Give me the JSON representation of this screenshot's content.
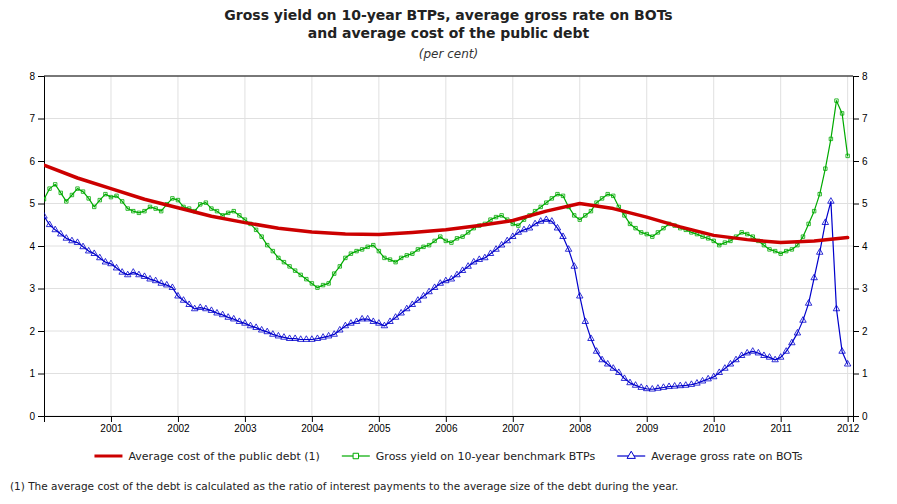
{
  "chart_data": {
    "type": "line",
    "title": [
      "Gross yield on 10-year BTPs, average gross rate on BOTs",
      "and average cost of the public debt"
    ],
    "subtitle": "(per cent)",
    "annotations": [
      "(1) The average cost of the debt is calculated as the ratio of interest payments to the average size of the debt during the year."
    ],
    "xlim": [
      2000.0,
      2012.08
    ],
    "xticks": [
      2001,
      2002,
      2003,
      2004,
      2005,
      2006,
      2007,
      2008,
      2009,
      2010,
      2011,
      2012
    ],
    "ylim": [
      0,
      8
    ],
    "yticks": [
      0,
      1,
      2,
      3,
      4,
      5,
      6,
      7,
      8
    ],
    "y2lim": [
      0,
      8
    ],
    "y2ticks": [
      0,
      1,
      2,
      3,
      4,
      5,
      6,
      7,
      8
    ],
    "grid": true,
    "legend": "bottom",
    "series": [
      {
        "name": "Average cost of the public debt (1)",
        "color": "#cc0000",
        "x": [
          2000.0,
          2000.5,
          2001.0,
          2001.5,
          2002.0,
          2002.5,
          2003.0,
          2003.5,
          2004.0,
          2004.5,
          2005.0,
          2005.5,
          2006.0,
          2006.5,
          2007.0,
          2007.5,
          2008.0,
          2008.5,
          2009.0,
          2009.5,
          2010.0,
          2010.5,
          2011.0,
          2011.5,
          2012.0
        ],
        "values": [
          5.9,
          5.6,
          5.35,
          5.1,
          4.9,
          4.7,
          4.55,
          4.42,
          4.33,
          4.28,
          4.27,
          4.32,
          4.38,
          4.48,
          4.6,
          4.82,
          5.0,
          4.88,
          4.68,
          4.45,
          4.25,
          4.15,
          4.08,
          4.12,
          4.2
        ]
      },
      {
        "name": "Gross yield on 10-year benchmark BTPs",
        "color": "#00aa00",
        "marker": "square",
        "x": [
          2000.0,
          2000.083,
          2000.167,
          2000.25,
          2000.333,
          2000.417,
          2000.5,
          2000.583,
          2000.667,
          2000.75,
          2000.833,
          2000.917,
          2001.0,
          2001.083,
          2001.167,
          2001.25,
          2001.333,
          2001.417,
          2001.5,
          2001.583,
          2001.667,
          2001.75,
          2001.833,
          2001.917,
          2002.0,
          2002.083,
          2002.167,
          2002.25,
          2002.333,
          2002.417,
          2002.5,
          2002.583,
          2002.667,
          2002.75,
          2002.833,
          2002.917,
          2003.0,
          2003.083,
          2003.167,
          2003.25,
          2003.333,
          2003.417,
          2003.5,
          2003.583,
          2003.667,
          2003.75,
          2003.833,
          2003.917,
          2004.0,
          2004.083,
          2004.167,
          2004.25,
          2004.333,
          2004.417,
          2004.5,
          2004.583,
          2004.667,
          2004.75,
          2004.833,
          2004.917,
          2005.0,
          2005.083,
          2005.167,
          2005.25,
          2005.333,
          2005.417,
          2005.5,
          2005.583,
          2005.667,
          2005.75,
          2005.833,
          2005.917,
          2006.0,
          2006.083,
          2006.167,
          2006.25,
          2006.333,
          2006.417,
          2006.5,
          2006.583,
          2006.667,
          2006.75,
          2006.833,
          2006.917,
          2007.0,
          2007.083,
          2007.167,
          2007.25,
          2007.333,
          2007.417,
          2007.5,
          2007.583,
          2007.667,
          2007.75,
          2007.833,
          2007.917,
          2008.0,
          2008.083,
          2008.167,
          2008.25,
          2008.333,
          2008.417,
          2008.5,
          2008.583,
          2008.667,
          2008.75,
          2008.833,
          2008.917,
          2009.0,
          2009.083,
          2009.167,
          2009.25,
          2009.333,
          2009.417,
          2009.5,
          2009.583,
          2009.667,
          2009.75,
          2009.833,
          2009.917,
          2010.0,
          2010.083,
          2010.167,
          2010.25,
          2010.333,
          2010.417,
          2010.5,
          2010.583,
          2010.667,
          2010.75,
          2010.833,
          2010.917,
          2011.0,
          2011.083,
          2011.167,
          2011.25,
          2011.333,
          2011.417,
          2011.5,
          2011.583,
          2011.667,
          2011.75,
          2011.833,
          2011.917,
          2012.0
        ],
        "values": [
          5.1,
          5.35,
          5.45,
          5.25,
          5.05,
          5.2,
          5.35,
          5.28,
          5.12,
          4.92,
          5.08,
          5.22,
          5.15,
          5.18,
          5.05,
          4.88,
          4.82,
          4.78,
          4.82,
          4.92,
          4.88,
          4.82,
          4.98,
          5.12,
          5.08,
          4.92,
          4.88,
          4.82,
          4.98,
          5.02,
          4.88,
          4.82,
          4.72,
          4.78,
          4.82,
          4.72,
          4.62,
          4.52,
          4.38,
          4.22,
          4.02,
          3.88,
          3.72,
          3.62,
          3.52,
          3.42,
          3.32,
          3.22,
          3.12,
          3.02,
          3.08,
          3.12,
          3.35,
          3.52,
          3.72,
          3.82,
          3.88,
          3.92,
          3.98,
          4.02,
          3.88,
          3.72,
          3.68,
          3.62,
          3.72,
          3.78,
          3.82,
          3.92,
          3.98,
          4.02,
          4.12,
          4.22,
          4.12,
          4.08,
          4.18,
          4.22,
          4.32,
          4.42,
          4.48,
          4.52,
          4.62,
          4.68,
          4.72,
          4.62,
          4.52,
          4.48,
          4.62,
          4.72,
          4.82,
          4.92,
          5.02,
          5.12,
          5.22,
          5.18,
          4.92,
          4.72,
          4.62,
          4.72,
          4.82,
          5.02,
          5.12,
          5.22,
          5.18,
          4.92,
          4.72,
          4.52,
          4.42,
          4.32,
          4.28,
          4.22,
          4.32,
          4.42,
          4.52,
          4.48,
          4.42,
          4.38,
          4.32,
          4.28,
          4.22,
          4.18,
          4.12,
          4.02,
          4.08,
          4.12,
          4.22,
          4.32,
          4.28,
          4.22,
          4.12,
          4.02,
          3.92,
          3.88,
          3.82,
          3.88,
          3.92,
          4.02,
          4.22,
          4.52,
          4.82,
          5.22,
          5.82,
          6.52,
          7.42,
          7.12,
          6.12
        ]
      },
      {
        "name": "Average gross rate on BOTs",
        "color": "#0000cc",
        "marker": "triangle",
        "x": [
          2000.0,
          2000.083,
          2000.167,
          2000.25,
          2000.333,
          2000.417,
          2000.5,
          2000.583,
          2000.667,
          2000.75,
          2000.833,
          2000.917,
          2001.0,
          2001.083,
          2001.167,
          2001.25,
          2001.333,
          2001.417,
          2001.5,
          2001.583,
          2001.667,
          2001.75,
          2001.833,
          2001.917,
          2002.0,
          2002.083,
          2002.167,
          2002.25,
          2002.333,
          2002.417,
          2002.5,
          2002.583,
          2002.667,
          2002.75,
          2002.833,
          2002.917,
          2003.0,
          2003.083,
          2003.167,
          2003.25,
          2003.333,
          2003.417,
          2003.5,
          2003.583,
          2003.667,
          2003.75,
          2003.833,
          2003.917,
          2004.0,
          2004.083,
          2004.167,
          2004.25,
          2004.333,
          2004.417,
          2004.5,
          2004.583,
          2004.667,
          2004.75,
          2004.833,
          2004.917,
          2005.0,
          2005.083,
          2005.167,
          2005.25,
          2005.333,
          2005.417,
          2005.5,
          2005.583,
          2005.667,
          2005.75,
          2005.833,
          2005.917,
          2006.0,
          2006.083,
          2006.167,
          2006.25,
          2006.333,
          2006.417,
          2006.5,
          2006.583,
          2006.667,
          2006.75,
          2006.833,
          2006.917,
          2007.0,
          2007.083,
          2007.167,
          2007.25,
          2007.333,
          2007.417,
          2007.5,
          2007.583,
          2007.667,
          2007.75,
          2007.833,
          2007.917,
          2008.0,
          2008.083,
          2008.167,
          2008.25,
          2008.333,
          2008.417,
          2008.5,
          2008.583,
          2008.667,
          2008.75,
          2008.833,
          2008.917,
          2009.0,
          2009.083,
          2009.167,
          2009.25,
          2009.333,
          2009.417,
          2009.5,
          2009.583,
          2009.667,
          2009.75,
          2009.833,
          2009.917,
          2010.0,
          2010.083,
          2010.167,
          2010.25,
          2010.333,
          2010.417,
          2010.5,
          2010.583,
          2010.667,
          2010.75,
          2010.833,
          2010.917,
          2011.0,
          2011.083,
          2011.167,
          2011.25,
          2011.333,
          2011.417,
          2011.5,
          2011.583,
          2011.667,
          2011.75,
          2011.833,
          2011.917,
          2012.0
        ],
        "values": [
          4.7,
          4.5,
          4.38,
          4.28,
          4.18,
          4.12,
          4.08,
          3.98,
          3.88,
          3.82,
          3.72,
          3.62,
          3.58,
          3.48,
          3.38,
          3.32,
          3.38,
          3.32,
          3.28,
          3.22,
          3.18,
          3.12,
          3.08,
          3.02,
          2.82,
          2.72,
          2.62,
          2.52,
          2.55,
          2.52,
          2.48,
          2.42,
          2.38,
          2.32,
          2.28,
          2.22,
          2.18,
          2.12,
          2.08,
          2.02,
          1.98,
          1.92,
          1.88,
          1.85,
          1.82,
          1.82,
          1.8,
          1.8,
          1.8,
          1.82,
          1.85,
          1.88,
          1.92,
          2.02,
          2.12,
          2.18,
          2.22,
          2.28,
          2.28,
          2.22,
          2.18,
          2.12,
          2.22,
          2.32,
          2.42,
          2.52,
          2.62,
          2.72,
          2.82,
          2.92,
          3.02,
          3.12,
          3.18,
          3.22,
          3.32,
          3.42,
          3.52,
          3.62,
          3.68,
          3.72,
          3.82,
          3.92,
          4.02,
          4.12,
          4.22,
          4.32,
          4.38,
          4.42,
          4.52,
          4.58,
          4.62,
          4.58,
          4.42,
          4.22,
          3.92,
          3.52,
          2.82,
          2.22,
          1.82,
          1.52,
          1.32,
          1.22,
          1.12,
          1.02,
          0.88,
          0.78,
          0.72,
          0.67,
          0.64,
          0.63,
          0.65,
          0.67,
          0.69,
          0.7,
          0.71,
          0.72,
          0.74,
          0.77,
          0.82,
          0.87,
          0.92,
          1.02,
          1.12,
          1.22,
          1.32,
          1.42,
          1.48,
          1.52,
          1.48,
          1.42,
          1.38,
          1.32,
          1.38,
          1.52,
          1.72,
          1.95,
          2.25,
          2.65,
          3.25,
          3.85,
          4.55,
          5.05,
          2.52,
          1.52,
          1.22
        ]
      }
    ]
  }
}
